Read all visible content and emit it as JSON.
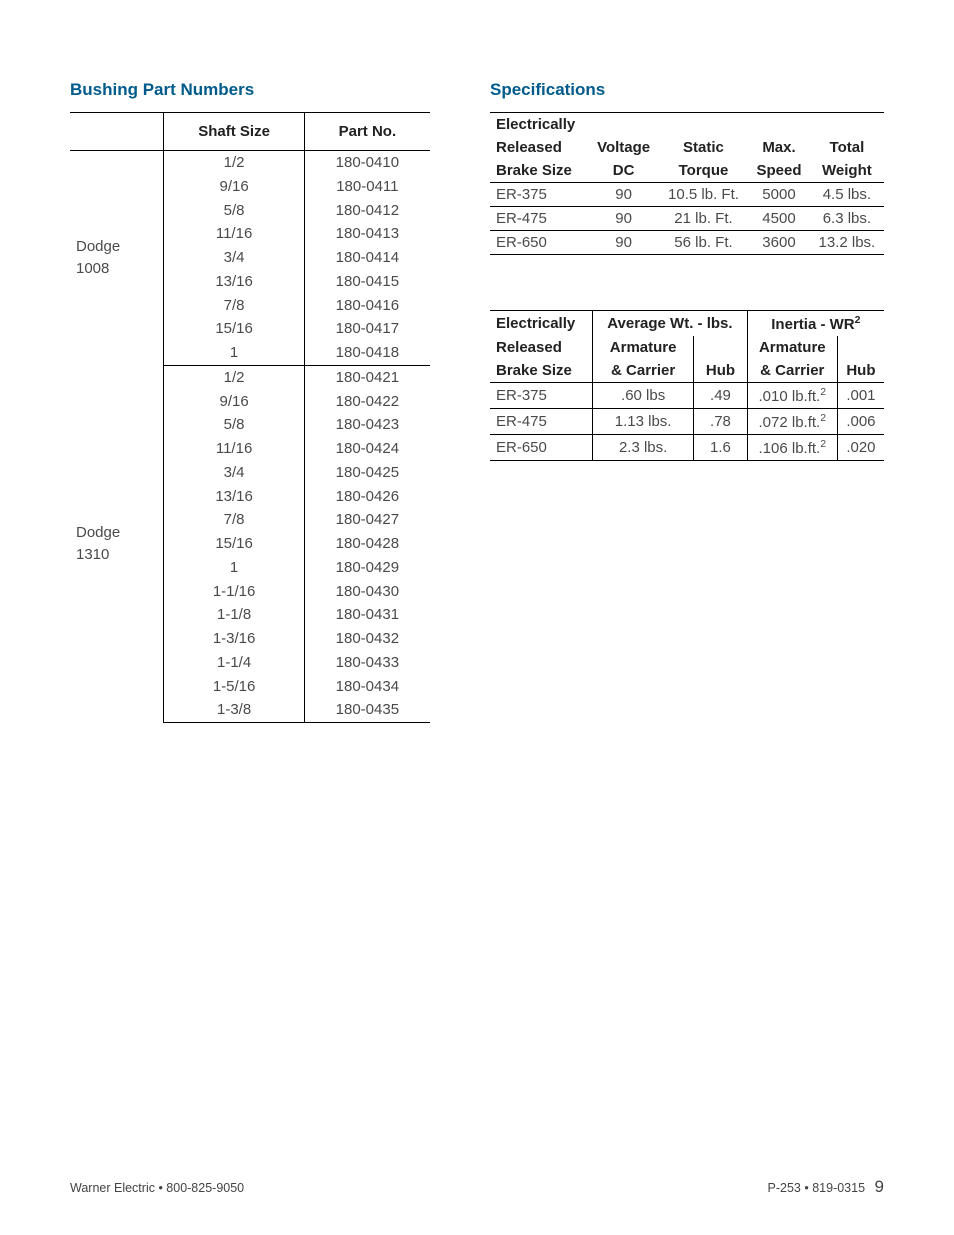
{
  "left": {
    "title": "Bushing Part Numbers",
    "headers": {
      "model": "",
      "shaft": "Shaft Size",
      "part": "Part No."
    },
    "groups": [
      {
        "model": "Dodge\n1008",
        "rows": [
          {
            "shaft": "1/2",
            "part": "180-0410"
          },
          {
            "shaft": "9/16",
            "part": "180-0411"
          },
          {
            "shaft": "5/8",
            "part": "180-0412"
          },
          {
            "shaft": "11/16",
            "part": "180-0413"
          },
          {
            "shaft": "3/4",
            "part": "180-0414"
          },
          {
            "shaft": "13/16",
            "part": "180-0415"
          },
          {
            "shaft": "7/8",
            "part": "180-0416"
          },
          {
            "shaft": "15/16",
            "part": "180-0417"
          },
          {
            "shaft": "1",
            "part": "180-0418"
          }
        ]
      },
      {
        "model": "Dodge\n1310",
        "rows": [
          {
            "shaft": "1/2",
            "part": "180-0421"
          },
          {
            "shaft": "9/16",
            "part": "180-0422"
          },
          {
            "shaft": "5/8",
            "part": "180-0423"
          },
          {
            "shaft": "11/16",
            "part": "180-0424"
          },
          {
            "shaft": "3/4",
            "part": "180-0425"
          },
          {
            "shaft": "13/16",
            "part": "180-0426"
          },
          {
            "shaft": "7/8",
            "part": "180-0427"
          },
          {
            "shaft": "15/16",
            "part": "180-0428"
          },
          {
            "shaft": "1",
            "part": "180-0429"
          },
          {
            "shaft": "1-1/16",
            "part": "180-0430"
          },
          {
            "shaft": "1-1/8",
            "part": "180-0431"
          },
          {
            "shaft": "1-3/16",
            "part": "180-0432"
          },
          {
            "shaft": "1-1/4",
            "part": "180-0433"
          },
          {
            "shaft": "1-5/16",
            "part": "180-0434"
          },
          {
            "shaft": "1-3/8",
            "part": "180-0435"
          }
        ]
      }
    ]
  },
  "right": {
    "title": "Specifications",
    "spec1": {
      "headers": {
        "r1": [
          "Electrically",
          "",
          "",
          "",
          ""
        ],
        "r2": [
          "Released",
          "Voltage",
          "Static",
          "Max.",
          "Total"
        ],
        "r3": [
          "Brake Size",
          "DC",
          "Torque",
          "Speed",
          "Weight"
        ]
      },
      "rows": [
        {
          "size": "ER-375",
          "v": "90",
          "torque": "10.5 lb. Ft.",
          "speed": "5000",
          "wt": "4.5 lbs."
        },
        {
          "size": "ER-475",
          "v": "90",
          "torque": "21 lb. Ft.",
          "speed": "4500",
          "wt": "6.3 lbs."
        },
        {
          "size": "ER-650",
          "v": "90",
          "torque": "56  lb. Ft.",
          "speed": "3600",
          "wt": "13.2 lbs."
        }
      ]
    },
    "spec2": {
      "headers": {
        "top": [
          "Electrically",
          "Average Wt. - lbs.",
          "Inertia - WR"
        ],
        "r2": [
          "Released",
          "Armature",
          "",
          "Armature",
          ""
        ],
        "r3": [
          "Brake Size",
          "& Carrier",
          "Hub",
          "& Carrier",
          "Hub"
        ]
      },
      "rows": [
        {
          "size": "ER-375",
          "ac": ".60 lbs",
          "hub": ".49",
          "iac": ".010 lb.ft.",
          "ihub": ".001"
        },
        {
          "size": "ER-475",
          "ac": "1.13 lbs.",
          "hub": ".78",
          "iac": ".072 lb.ft.",
          "ihub": ".006"
        },
        {
          "size": "ER-650",
          "ac": "2.3 lbs.",
          "hub": "1.6",
          "iac": ".106 lb.ft.",
          "ihub": ".020"
        }
      ]
    }
  },
  "footer": {
    "left": "Warner Electric • 800-825-9050",
    "right": "P-253 • 819-0315",
    "page": "9"
  }
}
